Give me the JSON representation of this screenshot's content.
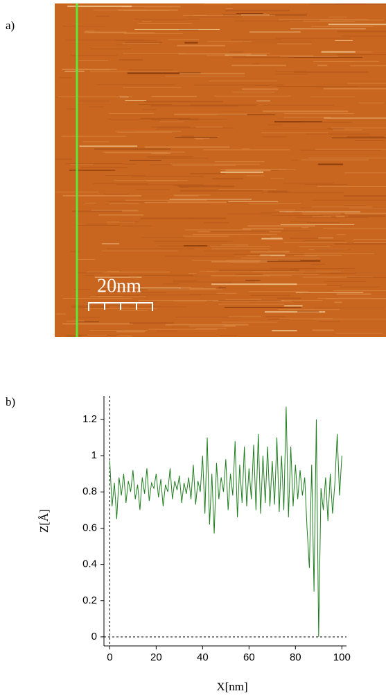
{
  "panel_labels": [
    "a)",
    "b)"
  ],
  "scale_bar": "20nm",
  "chart_data": {
    "type": "line",
    "xlabel": "X[nm]",
    "ylabel": "Z[Å]",
    "x": [
      0,
      1,
      2,
      3,
      4,
      5,
      6,
      7,
      8,
      9,
      10,
      11,
      12,
      13,
      14,
      15,
      16,
      17,
      18,
      19,
      20,
      21,
      22,
      23,
      24,
      25,
      26,
      27,
      28,
      29,
      30,
      31,
      32,
      33,
      34,
      35,
      36,
      37,
      38,
      39,
      40,
      41,
      42,
      43,
      44,
      45,
      46,
      47,
      48,
      49,
      50,
      51,
      52,
      53,
      54,
      55,
      56,
      57,
      58,
      59,
      60,
      61,
      62,
      63,
      64,
      65,
      66,
      67,
      68,
      69,
      70,
      71,
      72,
      73,
      74,
      75,
      76,
      77,
      78,
      79,
      80,
      81,
      82,
      83,
      84,
      85,
      86,
      87,
      88,
      89,
      90,
      91,
      92,
      93,
      94,
      95,
      96,
      97,
      98,
      99,
      100
    ],
    "series": [
      {
        "color": "#1e7d1e",
        "values": [
          0.97,
          0.72,
          0.85,
          0.65,
          0.88,
          0.78,
          0.9,
          0.74,
          0.86,
          0.8,
          0.92,
          0.76,
          0.84,
          0.7,
          0.88,
          0.79,
          0.93,
          0.75,
          0.85,
          0.82,
          0.9,
          0.77,
          0.87,
          0.72,
          0.84,
          0.8,
          0.93,
          0.76,
          0.86,
          0.81,
          0.89,
          0.74,
          0.85,
          0.79,
          0.88,
          0.76,
          0.95,
          0.73,
          0.86,
          0.8,
          1.0,
          0.68,
          1.1,
          0.62,
          0.9,
          0.57,
          0.96,
          0.76,
          0.88,
          0.8,
          0.98,
          0.7,
          0.9,
          0.78,
          1.08,
          0.66,
          0.95,
          0.74,
          1.05,
          0.72,
          0.93,
          0.76,
          1.06,
          0.7,
          1.12,
          0.68,
          1.0,
          0.74,
          1.05,
          0.72,
          0.97,
          0.73,
          1.1,
          0.69,
          1.0,
          0.7,
          1.27,
          0.66,
          1.05,
          0.72,
          0.95,
          0.76,
          0.92,
          0.78,
          0.88,
          0.6,
          0.38,
          0.95,
          0.25,
          1.2,
          0.0,
          0.82,
          0.7,
          0.88,
          0.64,
          0.9,
          0.68,
          0.85,
          1.12,
          0.78,
          1.0
        ]
      }
    ],
    "xlim": [
      -2.5,
      102
    ],
    "ylim": [
      -0.05,
      1.33
    ],
    "xticks": [
      0,
      20,
      40,
      60,
      80,
      100
    ],
    "yticks": [
      0,
      0.2,
      0.4,
      0.6,
      0.8,
      1,
      1.2
    ]
  }
}
